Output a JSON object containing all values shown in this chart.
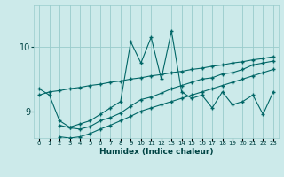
{
  "bg_color": "#cceaea",
  "grid_color": "#99cccc",
  "line_color": "#006666",
  "xlabel": "Humidex (Indice chaleur)",
  "xlim": [
    -0.5,
    23.5
  ],
  "ylim": [
    8.58,
    10.65
  ],
  "yticks": [
    9,
    10
  ],
  "xtick_labels": [
    "0",
    "1",
    "2",
    "3",
    "4",
    "5",
    "6",
    "7",
    "8",
    "9",
    "10",
    "11",
    "12",
    "13",
    "14",
    "15",
    "16",
    "17",
    "18",
    "19",
    "20",
    "21",
    "22",
    "23"
  ],
  "series": [
    {
      "x": [
        0,
        1,
        2,
        3,
        4,
        5,
        6,
        7,
        8,
        9,
        10,
        11,
        12,
        13,
        14,
        15,
        16,
        17,
        18,
        19,
        20,
        21,
        22,
        23
      ],
      "y": [
        9.35,
        9.25,
        8.85,
        8.75,
        8.8,
        8.85,
        8.95,
        9.05,
        9.15,
        10.08,
        9.75,
        10.15,
        9.5,
        10.25,
        9.3,
        9.2,
        9.25,
        9.05,
        9.3,
        9.1,
        9.15,
        9.25,
        8.95,
        9.3
      ]
    },
    {
      "x": [
        0,
        1,
        2,
        3,
        4,
        5,
        6,
        7,
        8,
        9,
        10,
        11,
        12,
        13,
        14,
        15,
        16,
        17,
        18,
        19,
        20,
        21,
        22,
        23
      ],
      "y": [
        9.25,
        9.3,
        9.32,
        9.35,
        9.37,
        9.4,
        9.42,
        9.45,
        9.47,
        9.5,
        9.52,
        9.55,
        9.57,
        9.6,
        9.62,
        9.65,
        9.67,
        9.7,
        9.72,
        9.75,
        9.77,
        9.8,
        9.82,
        9.85
      ]
    },
    {
      "x": [
        2,
        3,
        4,
        5,
        6,
        7,
        8,
        9,
        10,
        11,
        12,
        13,
        14,
        15,
        16,
        17,
        18,
        19,
        20,
        21,
        22,
        23
      ],
      "y": [
        8.78,
        8.74,
        8.72,
        8.76,
        8.85,
        8.9,
        8.97,
        9.08,
        9.18,
        9.22,
        9.28,
        9.35,
        9.4,
        9.45,
        9.5,
        9.52,
        9.58,
        9.6,
        9.65,
        9.72,
        9.75,
        9.78
      ]
    },
    {
      "x": [
        2,
        3,
        4,
        5,
        6,
        7,
        8,
        9,
        10,
        11,
        12,
        13,
        14,
        15,
        16,
        17,
        18,
        19,
        20,
        21,
        22,
        23
      ],
      "y": [
        8.6,
        8.58,
        8.6,
        8.65,
        8.72,
        8.78,
        8.85,
        8.92,
        9.0,
        9.05,
        9.1,
        9.15,
        9.2,
        9.25,
        9.3,
        9.35,
        9.4,
        9.45,
        9.5,
        9.55,
        9.6,
        9.65
      ]
    }
  ]
}
